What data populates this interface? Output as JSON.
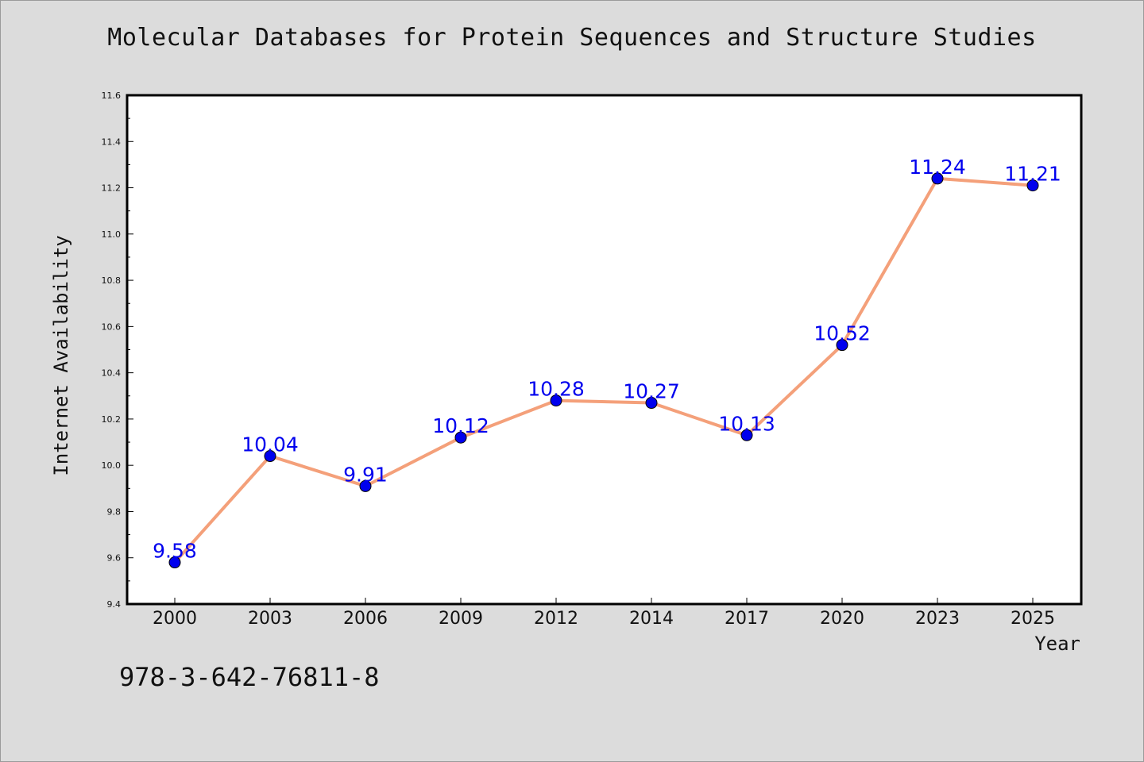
{
  "chart_data": {
    "type": "line",
    "title": "Molecular Databases for Protein Sequences and Structure Studies",
    "xlabel": "Year",
    "ylabel": "Internet Availability",
    "categories": [
      "2000",
      "2003",
      "2006",
      "2009",
      "2012",
      "2014",
      "2017",
      "2020",
      "2023",
      "2025"
    ],
    "series": [
      {
        "values": [
          9.58,
          10.04,
          9.91,
          10.12,
          10.28,
          10.27,
          10.13,
          10.52,
          11.24,
          11.21
        ],
        "data_labels": [
          "9.58",
          "10.04",
          "9.91",
          "10.12",
          "10.28",
          "10.27",
          "10.13",
          "10.52",
          "11.24",
          "11.21"
        ],
        "line_color": "#f4a07a",
        "marker_color": "#0000ee"
      }
    ],
    "ylim": [
      9.4,
      11.6
    ],
    "yticks": [
      "9.4",
      "9.6",
      "9.8",
      "10.0",
      "10.2",
      "10.4",
      "10.6",
      "10.8",
      "11.0",
      "11.2",
      "11.4",
      "11.6"
    ],
    "grid": false,
    "legend": "none",
    "label_color": "#0000ee"
  },
  "footer": {
    "isbn": "978-3-642-76811-8"
  }
}
